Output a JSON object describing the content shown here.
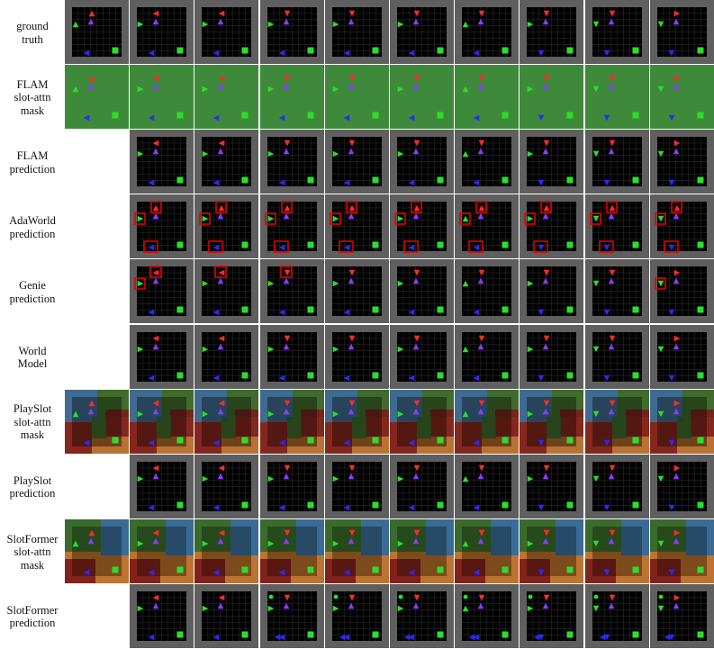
{
  "rows": [
    {
      "key": "gt",
      "label": [
        "ground",
        "truth"
      ],
      "start_col": 0,
      "kind": "frame"
    },
    {
      "key": "flam_mask",
      "label": [
        "FLAM",
        "slot-attn",
        "mask"
      ],
      "start_col": 0,
      "kind": "flam_mask"
    },
    {
      "key": "flam_pred",
      "label": [
        "FLAM",
        "prediction"
      ],
      "start_col": 1,
      "kind": "frame"
    },
    {
      "key": "adaworld_pred",
      "label": [
        "AdaWorld",
        "prediction"
      ],
      "start_col": 1,
      "kind": "ada"
    },
    {
      "key": "genie_pred",
      "label": [
        "Genie",
        "prediction"
      ],
      "start_col": 1,
      "kind": "genie"
    },
    {
      "key": "world_model",
      "label": [
        "World",
        "Model"
      ],
      "start_col": 1,
      "kind": "frame"
    },
    {
      "key": "playslot_mask",
      "label": [
        "PlaySlot",
        "slot-attn",
        "mask"
      ],
      "start_col": 0,
      "kind": "playslot_mask"
    },
    {
      "key": "playslot_pred",
      "label": [
        "PlaySlot",
        "prediction"
      ],
      "start_col": 1,
      "kind": "frame"
    },
    {
      "key": "slotformer_mask",
      "label": [
        "SlotFormer",
        "slot-attn",
        "mask"
      ],
      "start_col": 0,
      "kind": "slotformer_mask"
    },
    {
      "key": "slotformer_pred",
      "label": [
        "SlotFormer",
        "prediction"
      ],
      "start_col": 1,
      "kind": "sf"
    }
  ],
  "num_columns": 10,
  "colors": {
    "tile_border": "#5f5f5f",
    "tile_bg": "#000000",
    "grid": "#2a2a2a",
    "red": "#ff2a2a",
    "purple": "#8a3cff",
    "green": "#2adf2a",
    "blue": "#2a2aff",
    "highlight": "#e00000",
    "flam_mask_bg": "#3e8a3a",
    "mask_orange": "#c8762e",
    "mask_darkred": "#7a1a1a",
    "mask_blue": "#2a6aa0",
    "mask_green": "#2a6a2a"
  },
  "icons": {
    "red_agent": "red-triangle-icon",
    "purple_agent": "purple-triangle-icon",
    "green_agent": "green-triangle-icon",
    "blue_agent": "blue-triangle-icon",
    "goal": "green-square-goal-icon",
    "highlight": "red-box-highlight-icon"
  }
}
